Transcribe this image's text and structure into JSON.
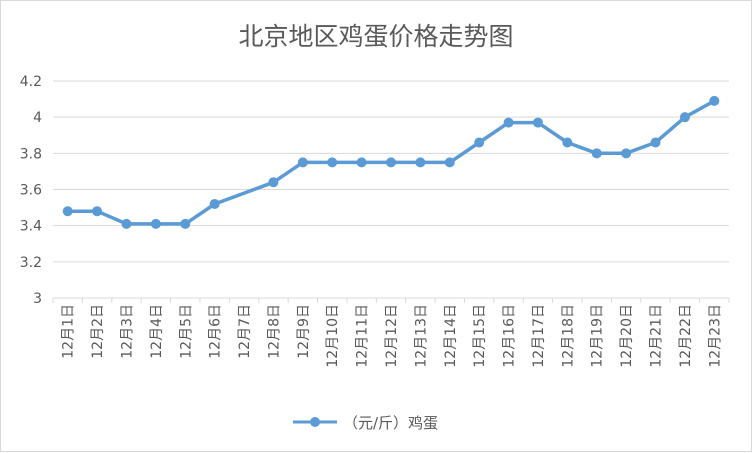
{
  "chart_data": {
    "type": "line",
    "title": "北京地区鸡蛋价格走势图",
    "categories": [
      "12月1日",
      "12月2日",
      "12月3日",
      "12月4日",
      "12月5日",
      "12月6日",
      "12月7日",
      "12月8日",
      "12月9日",
      "12月10日",
      "12月11日",
      "12月12日",
      "12月13日",
      "12月14日",
      "12月15日",
      "12月16日",
      "12月17日",
      "12月18日",
      "12月19日",
      "12月20日",
      "12月21日",
      "12月22日",
      "12月23日"
    ],
    "series": [
      {
        "name": "（元/斤）鸡蛋",
        "values": [
          3.48,
          3.48,
          3.41,
          3.41,
          3.41,
          3.52,
          null,
          3.64,
          3.75,
          3.75,
          3.75,
          3.75,
          3.75,
          3.75,
          3.86,
          3.97,
          3.97,
          3.86,
          3.8,
          3.8,
          3.86,
          4.0,
          4.09
        ],
        "color": "#5b9bd5"
      }
    ],
    "yticks": [
      "3",
      "3.2",
      "3.4",
      "3.6",
      "3.8",
      "4",
      "4.2"
    ],
    "ylim": [
      3,
      4.2
    ],
    "grid": true,
    "legend_position": "bottom"
  }
}
